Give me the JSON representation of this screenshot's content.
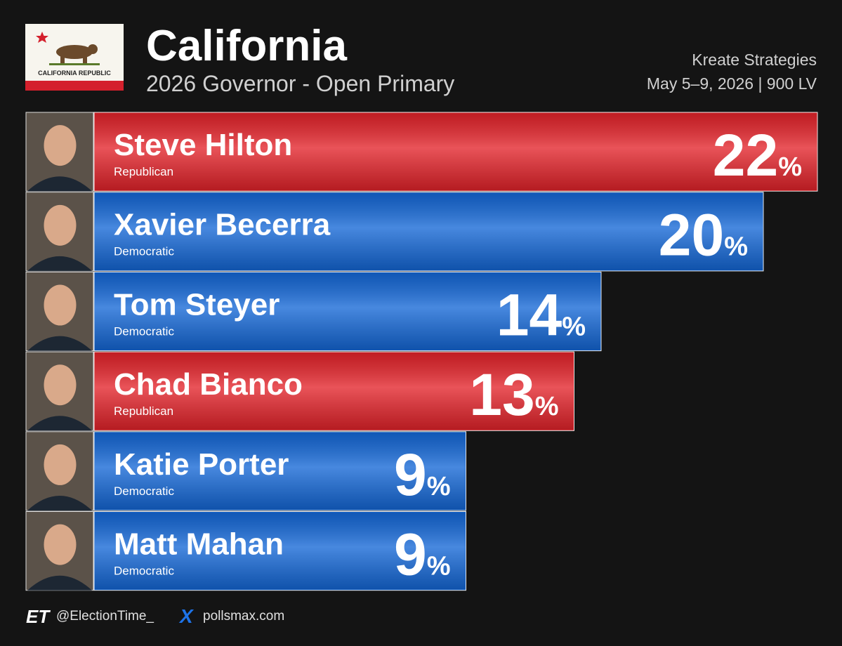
{
  "chart_data": {
    "type": "bar",
    "title": "California",
    "subtitle": "2026 Governor - Open Primary",
    "source": "Kreate Strategies",
    "field_dates": "May 5–9, 2026 | 900 LV",
    "flag_text": "CALIFORNIA REPUBLIC",
    "categories": [
      "Steve Hilton",
      "Xavier Becerra",
      "Tom Steyer",
      "Chad Bianco",
      "Katie Porter",
      "Matt Mahan"
    ],
    "parties": [
      "Republican",
      "Democratic",
      "Democratic",
      "Republican",
      "Democratic",
      "Democratic"
    ],
    "values": [
      22,
      20,
      14,
      13,
      9,
      9
    ],
    "value_labels": [
      "22%",
      "20%",
      "14%",
      "13%",
      "9%",
      "9%"
    ],
    "colors": [
      "#e3232a",
      "#1467d6",
      "#1467d6",
      "#e3232a",
      "#1467d6",
      "#1467d6"
    ]
  },
  "footer": {
    "logo": "ET",
    "handle": "@ElectionTime_",
    "x_logo": "X",
    "website": "pollsmax.com"
  }
}
